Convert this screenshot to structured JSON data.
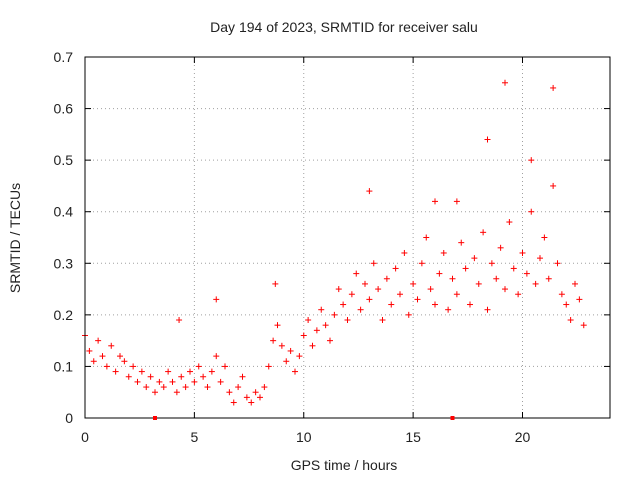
{
  "chart_data": {
    "type": "scatter",
    "title": "Day 194 of 2023, SRMTID for receiver salu",
    "xlabel": "GPS time / hours",
    "ylabel": "SRMTID / TECUs",
    "xlim": [
      0,
      24
    ],
    "ylim": [
      0,
      0.7
    ],
    "xticks": [
      "0",
      "5",
      "10",
      "15",
      "20"
    ],
    "yticks": [
      "0",
      "0.1",
      "0.2",
      "0.3",
      "0.4",
      "0.5",
      "0.6",
      "0.7"
    ],
    "grid": true,
    "marker": "+",
    "color": "#ff0000",
    "series": [
      {
        "name": "SRMTID",
        "x": [
          0.0,
          0.2,
          0.4,
          0.6,
          0.8,
          1.0,
          1.2,
          1.4,
          1.6,
          1.8,
          2.0,
          2.2,
          2.4,
          2.6,
          2.8,
          3.0,
          3.2,
          3.4,
          3.6,
          3.8,
          4.0,
          4.2,
          4.4,
          4.6,
          4.8,
          5.0,
          5.2,
          5.4,
          5.6,
          5.8,
          6.0,
          6.2,
          6.4,
          6.6,
          6.8,
          7.0,
          7.2,
          7.4,
          7.6,
          7.8,
          8.0,
          8.2,
          8.4,
          8.6,
          8.8,
          9.0,
          9.2,
          9.4,
          9.6,
          9.8,
          10.0,
          10.2,
          10.4,
          10.6,
          10.8,
          11.0,
          11.2,
          11.4,
          11.6,
          11.8,
          12.0,
          12.2,
          12.4,
          12.6,
          12.8,
          13.0,
          13.2,
          13.4,
          13.6,
          13.8,
          14.0,
          14.2,
          14.4,
          14.6,
          14.8,
          15.0,
          15.2,
          15.4,
          15.6,
          15.8,
          16.0,
          16.2,
          16.4,
          16.6,
          16.8,
          17.0,
          17.2,
          17.4,
          17.6,
          17.8,
          18.0,
          18.2,
          18.4,
          18.6,
          18.8,
          19.0,
          19.2,
          19.4,
          19.6,
          19.8,
          20.0,
          20.2,
          20.4,
          20.6,
          20.8,
          21.0,
          21.2,
          21.4,
          21.6,
          21.8,
          22.0,
          22.2,
          22.4,
          22.6,
          22.8
        ],
        "y": [
          0.16,
          0.13,
          0.11,
          0.15,
          0.12,
          0.1,
          0.14,
          0.09,
          0.12,
          0.11,
          0.08,
          0.1,
          0.07,
          0.09,
          0.06,
          0.08,
          0.05,
          0.07,
          0.06,
          0.09,
          0.07,
          0.05,
          0.08,
          0.06,
          0.09,
          0.07,
          0.1,
          0.08,
          0.06,
          0.09,
          0.12,
          0.07,
          0.1,
          0.05,
          0.03,
          0.06,
          0.08,
          0.04,
          0.03,
          0.05,
          0.04,
          0.06,
          0.1,
          0.15,
          0.18,
          0.14,
          0.11,
          0.13,
          0.09,
          0.12,
          0.16,
          0.19,
          0.14,
          0.17,
          0.21,
          0.18,
          0.15,
          0.2,
          0.25,
          0.22,
          0.19,
          0.24,
          0.28,
          0.21,
          0.26,
          0.23,
          0.3,
          0.25,
          0.19,
          0.27,
          0.22,
          0.29,
          0.24,
          0.32,
          0.2,
          0.26,
          0.23,
          0.3,
          0.35,
          0.25,
          0.22,
          0.28,
          0.32,
          0.21,
          0.27,
          0.24,
          0.34,
          0.29,
          0.22,
          0.31,
          0.26,
          0.36,
          0.21,
          0.3,
          0.27,
          0.33,
          0.25,
          0.38,
          0.29,
          0.24,
          0.32,
          0.28,
          0.4,
          0.26,
          0.31,
          0.35,
          0.27,
          0.45,
          0.3,
          0.24,
          0.22,
          0.19,
          0.26,
          0.23,
          0.18
        ],
        "notable_points": {
          "x": [
            19.2,
            21.4,
            18.4,
            20.4,
            13.0,
            17.0,
            16.0,
            6.0,
            8.7,
            4.3
          ],
          "y": [
            0.65,
            0.64,
            0.54,
            0.5,
            0.44,
            0.42,
            0.42,
            0.23,
            0.26,
            0.19
          ]
        }
      }
    ],
    "axis_markers_x": [
      3.2,
      16.8
    ]
  }
}
